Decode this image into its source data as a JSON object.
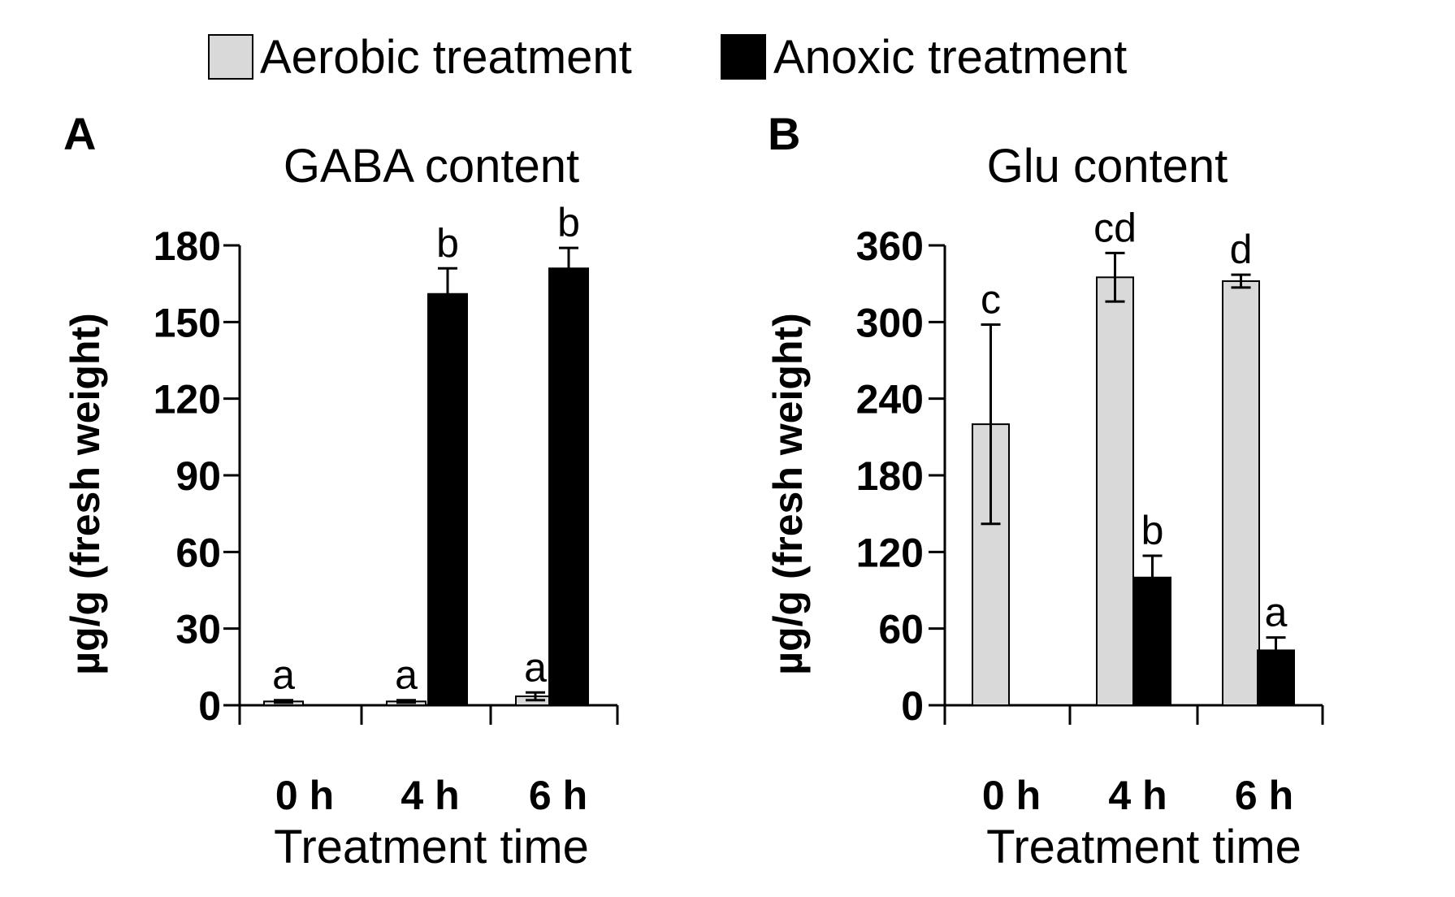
{
  "legend": {
    "items": [
      {
        "label": "Aerobic treatment",
        "color": "#d9d9d9"
      },
      {
        "label": "Anoxic treatment",
        "color": "#000000"
      }
    ]
  },
  "chart_data": [
    {
      "type": "bar",
      "panel": "A",
      "title": "GABA content",
      "xlabel": "Treatment time",
      "ylabel": "µg/g (fresh weight)",
      "ylim": [
        0,
        180
      ],
      "yticks": [
        0,
        30,
        60,
        90,
        120,
        150,
        180
      ],
      "categories": [
        "0 h",
        "4 h",
        "6 h"
      ],
      "series": [
        {
          "name": "Aerobic treatment",
          "color": "#d9d9d9",
          "values": [
            1.5,
            1.5,
            3.5
          ],
          "errors": [
            0.5,
            0.5,
            1.5
          ],
          "labels": [
            "a",
            "a",
            "a"
          ]
        },
        {
          "name": "Anoxic treatment",
          "color": "#000000",
          "values": [
            null,
            161,
            171
          ],
          "errors": [
            null,
            10,
            8
          ],
          "labels": [
            null,
            "b",
            "b"
          ]
        }
      ]
    },
    {
      "type": "bar",
      "panel": "B",
      "title": "Glu content",
      "xlabel": "Treatment time",
      "ylabel": "µg/g (fresh weight)",
      "ylim": [
        0,
        360
      ],
      "yticks": [
        0,
        60,
        120,
        180,
        240,
        300,
        360
      ],
      "categories": [
        "0 h",
        "4 h",
        "6 h"
      ],
      "series": [
        {
          "name": "Aerobic treatment",
          "color": "#d9d9d9",
          "values": [
            220,
            335,
            332
          ],
          "errors": [
            78,
            19,
            5
          ],
          "labels": [
            "c",
            "cd",
            "d"
          ]
        },
        {
          "name": "Anoxic treatment",
          "color": "#000000",
          "values": [
            null,
            100,
            43
          ],
          "errors": [
            null,
            17,
            10
          ],
          "labels": [
            null,
            "b",
            "a"
          ]
        }
      ]
    }
  ]
}
